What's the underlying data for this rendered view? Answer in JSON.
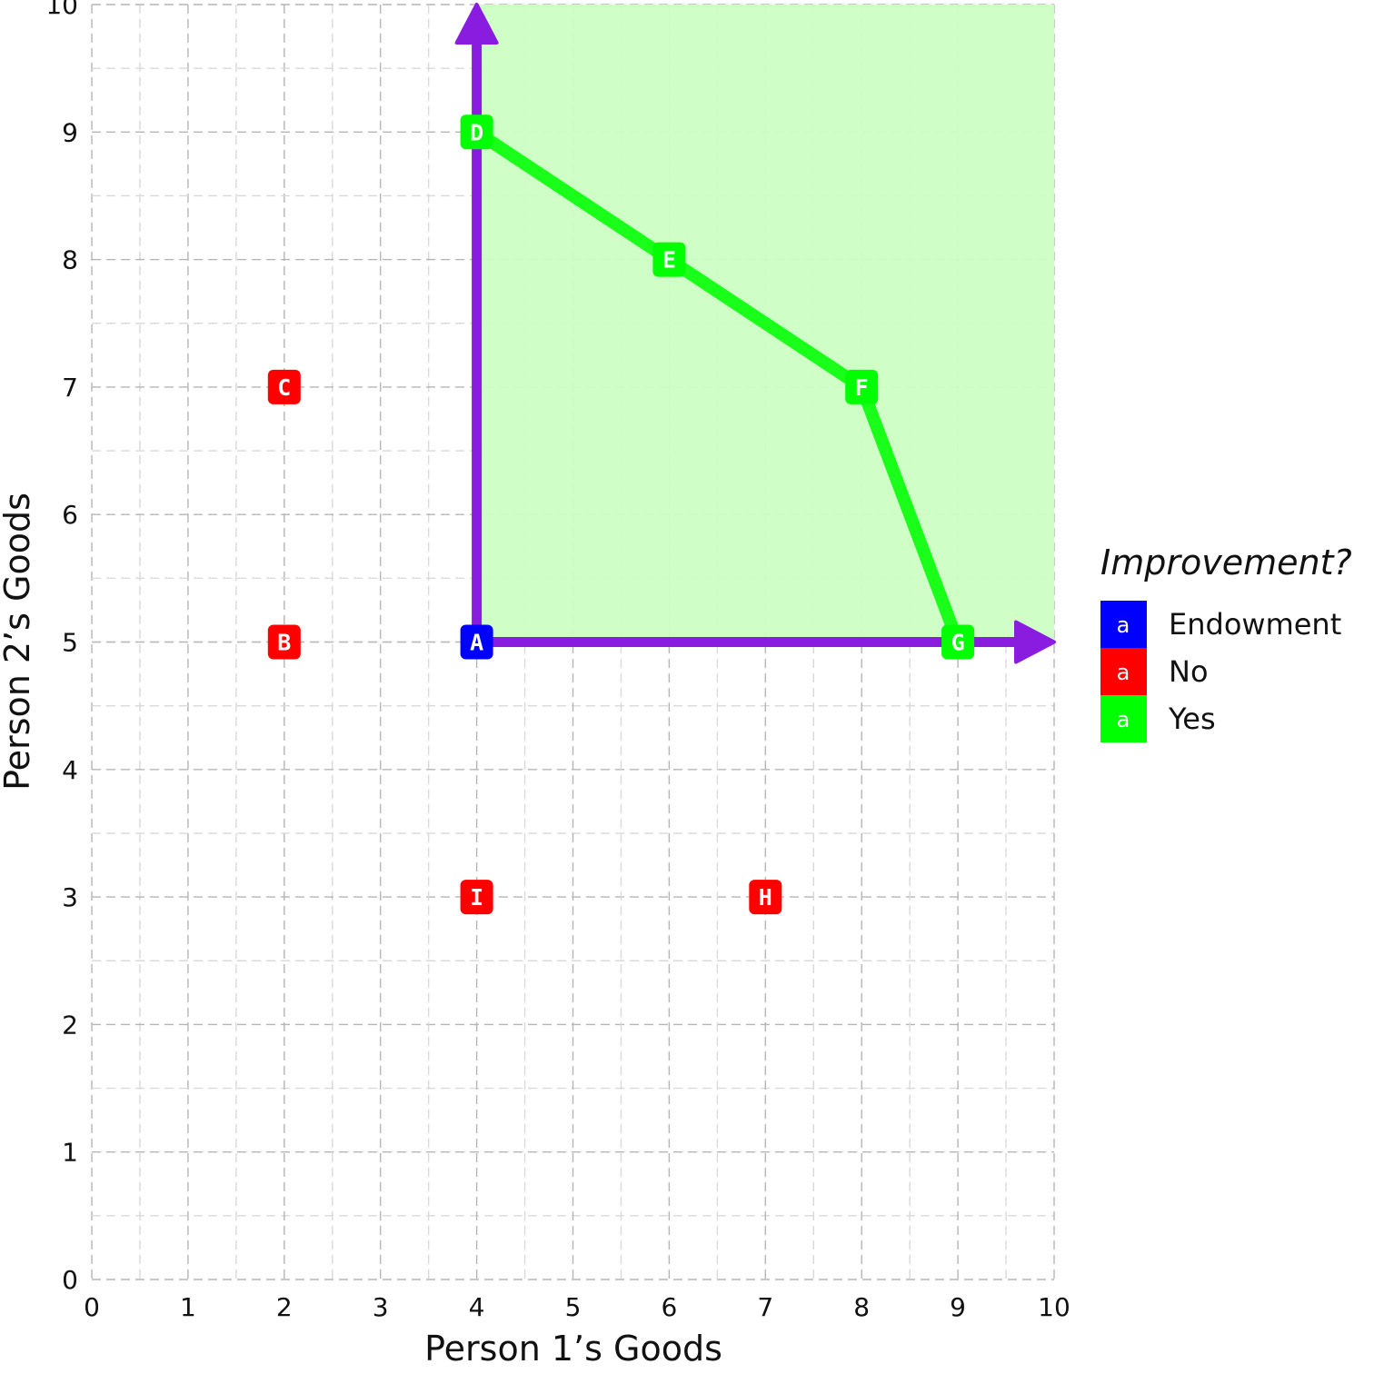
{
  "chart_data": {
    "type": "scatter",
    "title": "",
    "xlabel": "Person 1’s Goods",
    "ylabel": "Person 2’s Goods",
    "xlim": [
      0,
      10
    ],
    "ylim": [
      0,
      10
    ],
    "x_ticks": [
      "0",
      "1",
      "2",
      "3",
      "4",
      "5",
      "6",
      "7",
      "8",
      "9",
      "10"
    ],
    "y_ticks": [
      "0",
      "1",
      "2",
      "3",
      "4",
      "5",
      "6",
      "7",
      "8",
      "9",
      "10"
    ],
    "grid": true,
    "legend": {
      "title": "Improvement?",
      "placement": "right",
      "key_glyph": "a",
      "entries": [
        {
          "label": "Endowment",
          "color": "#0000ff"
        },
        {
          "label": "No",
          "color": "#ff0000"
        },
        {
          "label": "Yes",
          "color": "#00ff00"
        }
      ]
    },
    "shaded_region": {
      "x": [
        4,
        10
      ],
      "y": [
        5,
        10
      ],
      "color": "#ccffc4"
    },
    "arrows": [
      {
        "from": [
          4,
          5
        ],
        "to": [
          4,
          10
        ],
        "color": "#8a1ce0"
      },
      {
        "from": [
          4,
          5
        ],
        "to": [
          10,
          5
        ],
        "color": "#8a1ce0"
      }
    ],
    "frontier": {
      "x": [
        4,
        6,
        8,
        9
      ],
      "y": [
        9,
        8,
        7,
        5
      ],
      "color": "#1aff1a"
    },
    "points": [
      {
        "label": "A",
        "x": 4,
        "y": 5,
        "group": "Endowment"
      },
      {
        "label": "B",
        "x": 2,
        "y": 5,
        "group": "No"
      },
      {
        "label": "C",
        "x": 2,
        "y": 7,
        "group": "No"
      },
      {
        "label": "D",
        "x": 4,
        "y": 9,
        "group": "Yes"
      },
      {
        "label": "E",
        "x": 6,
        "y": 8,
        "group": "Yes"
      },
      {
        "label": "F",
        "x": 8,
        "y": 7,
        "group": "Yes"
      },
      {
        "label": "G",
        "x": 9,
        "y": 5,
        "group": "Yes"
      },
      {
        "label": "H",
        "x": 7,
        "y": 3,
        "group": "No"
      },
      {
        "label": "I",
        "x": 4,
        "y": 3,
        "group": "No"
      }
    ]
  }
}
